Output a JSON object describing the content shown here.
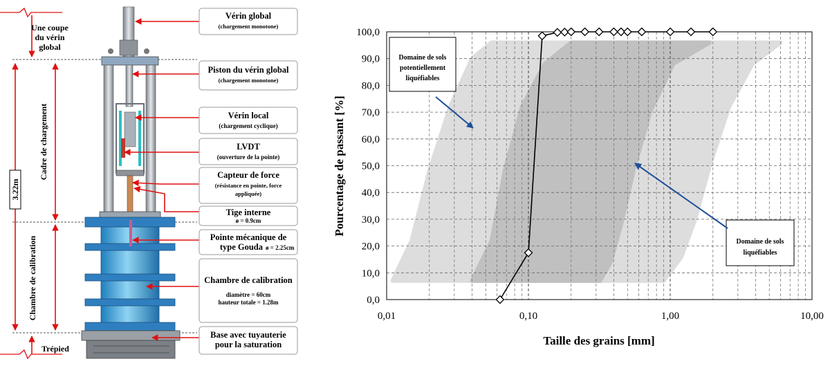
{
  "left_diagram": {
    "side_labels": {
      "cut": [
        "Une coupe",
        "du vérin",
        "global"
      ],
      "frame": "Cadre de chargement",
      "height": "3.22m",
      "chamber": "Chambre de calibration",
      "tripod": "Trépied"
    },
    "boxes": [
      {
        "title": "Vérin global",
        "sub": "(chargement monotone)"
      },
      {
        "title": "Piston du vérin global",
        "sub": "(chargement monotone)"
      },
      {
        "title": "Vérin local",
        "sub": "(chargement cyclique)"
      },
      {
        "title": "LVDT",
        "sub": "(ouverture de la pointe)"
      },
      {
        "title": "Capteur de force",
        "sub": "(résistance en pointe, force",
        "sub2": "appliquée)"
      },
      {
        "title": "Tige interne",
        "sub": "ø = 0.9cm"
      },
      {
        "title": "Pointe mécanique de",
        "title2": "type Gouda",
        "sub": "ø = 2.25cm"
      },
      {
        "title": "Chambre de calibration",
        "sub": "diamètre = 60cm",
        "sub2": "hauteur totale = 1.28m"
      },
      {
        "title": "Base avec tuyauterie",
        "title2": "pour la saturation"
      }
    ]
  },
  "chart_data": {
    "type": "line",
    "xscale": "log",
    "xlim": [
      0.01,
      10
    ],
    "ylim": [
      0,
      100
    ],
    "xlabel": "Taille des grains [mm]",
    "ylabel": "Pourcentage de passant [%]",
    "x_ticks": [
      "0,01",
      "0,10",
      "1,00",
      "10,00"
    ],
    "y_ticks": [
      "0,0",
      "10,0",
      "20,0",
      "30,0",
      "40,0",
      "50,0",
      "60,0",
      "70,0",
      "80,0",
      "90,0",
      "100,0"
    ],
    "series": [
      {
        "values": [
          {
            "x": 0.063,
            "y": 0
          },
          {
            "x": 0.1,
            "y": 17.5
          },
          {
            "x": 0.125,
            "y": 98.5
          },
          {
            "x": 0.16,
            "y": 99.8
          },
          {
            "x": 0.18,
            "y": 99.9
          },
          {
            "x": 0.2,
            "y": 100
          },
          {
            "x": 0.25,
            "y": 100
          },
          {
            "x": 0.315,
            "y": 100
          },
          {
            "x": 0.4,
            "y": 100
          },
          {
            "x": 0.45,
            "y": 100
          },
          {
            "x": 0.5,
            "y": 100
          },
          {
            "x": 0.63,
            "y": 100
          },
          {
            "x": 1.0,
            "y": 100
          },
          {
            "x": 1.4,
            "y": 100
          },
          {
            "x": 2.0,
            "y": 100
          }
        ]
      }
    ],
    "zones": [
      {
        "label_lines": [
          "Domaine de sols",
          "potentiellement",
          "liquéfiables"
        ],
        "color": "#dadada",
        "fine_edge": [
          {
            "x": 0.011,
            "y": 7
          },
          {
            "x": 0.015,
            "y": 22
          },
          {
            "x": 0.02,
            "y": 48
          },
          {
            "x": 0.028,
            "y": 72
          },
          {
            "x": 0.04,
            "y": 90
          },
          {
            "x": 0.055,
            "y": 96
          }
        ],
        "coarse_edge": [
          {
            "x": 6.0,
            "y": 96
          },
          {
            "x": 3.8,
            "y": 88
          },
          {
            "x": 2.6,
            "y": 72
          },
          {
            "x": 1.9,
            "y": 50
          },
          {
            "x": 1.5,
            "y": 30
          },
          {
            "x": 1.2,
            "y": 16
          },
          {
            "x": 0.9,
            "y": 7
          }
        ]
      },
      {
        "label_lines": [
          "Domaine de sols",
          "liquéfiables"
        ],
        "color": "#bdbdbd",
        "fine_edge": [
          {
            "x": 0.04,
            "y": 7
          },
          {
            "x": 0.055,
            "y": 22
          },
          {
            "x": 0.068,
            "y": 48
          },
          {
            "x": 0.09,
            "y": 72
          },
          {
            "x": 0.13,
            "y": 88
          },
          {
            "x": 0.2,
            "y": 96
          }
        ],
        "coarse_edge": [
          {
            "x": 1.9,
            "y": 96
          },
          {
            "x": 1.05,
            "y": 88
          },
          {
            "x": 0.72,
            "y": 70
          },
          {
            "x": 0.55,
            "y": 48
          },
          {
            "x": 0.45,
            "y": 28
          },
          {
            "x": 0.38,
            "y": 14
          },
          {
            "x": 0.32,
            "y": 7
          }
        ]
      }
    ]
  },
  "colors": {
    "red": "#e01010",
    "blue_arrow": "#1f4e9a",
    "chamber_blue": "#3aa3d8",
    "flange_blue": "#2f7fc0",
    "frame_gray": "#a9aeb4"
  }
}
